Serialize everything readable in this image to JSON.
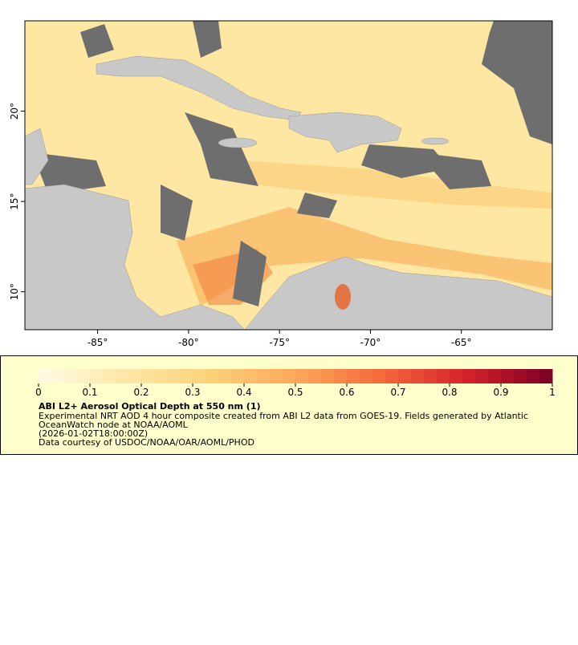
{
  "chart_data": {
    "type": "map",
    "xlim": [
      -89,
      -60
    ],
    "ylim": [
      7.9,
      25
    ],
    "xticks": [
      {
        "value": -85,
        "label": "-85°"
      },
      {
        "value": -80,
        "label": "-80°"
      },
      {
        "value": -75,
        "label": "-75°"
      },
      {
        "value": -70,
        "label": "-70°"
      },
      {
        "value": -65,
        "label": "-65°"
      }
    ],
    "yticks": [
      {
        "value": 10,
        "label": "10°"
      },
      {
        "value": 15,
        "label": "15°"
      },
      {
        "value": 20,
        "label": "20°"
      }
    ],
    "colorbar": {
      "lim": [
        0,
        1
      ],
      "ticks": [
        0,
        0.1,
        0.2,
        0.3,
        0.4,
        0.5,
        0.6,
        0.7,
        0.8,
        0.9,
        1
      ],
      "colors": [
        "#fffbe3",
        "#fee8a8",
        "#fdd27a",
        "#fca85a",
        "#f46a3c",
        "#d62128",
        "#7a0026"
      ]
    },
    "title": "ABI L2+ Aerosol Optical Depth at 550 nm (1)",
    "description": [
      "Experimental NRT AOD 4 hour composite created from ABI L2 data from GOES-19. Fields generated by Atlantic",
      "OceanWatch node at NOAA/AOML",
      "(2026-01-02T18:00:00Z)",
      "Data courtesy of USDOC/NOAA/OAR/AOML/PHOD"
    ]
  }
}
